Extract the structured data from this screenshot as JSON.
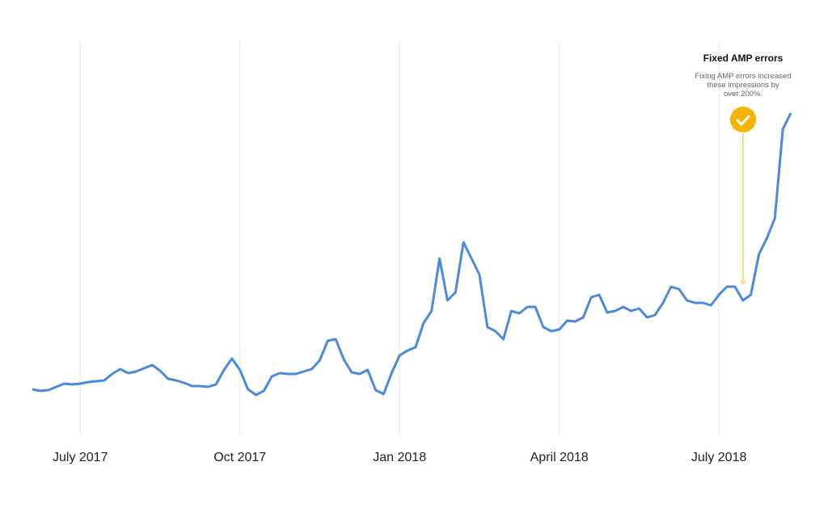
{
  "chart_data": {
    "type": "line",
    "color": "#4a89dc",
    "annotation": {
      "title": "Fixed AMP errors",
      "lines": [
        "Fixing AMP errors increased",
        "these impressions by",
        "over 200%."
      ]
    },
    "categories": [
      null,
      null,
      null,
      null,
      null,
      null,
      "July 2017",
      null,
      null,
      null,
      null,
      null,
      null,
      null,
      null,
      null,
      null,
      null,
      null,
      null,
      null,
      null,
      null,
      null,
      null,
      null,
      "Oct 2017",
      null,
      null,
      null,
      null,
      null,
      null,
      null,
      null,
      null,
      null,
      null,
      null,
      null,
      null,
      null,
      null,
      null,
      null,
      null,
      "Jan 2018",
      null,
      null,
      null,
      null,
      null,
      null,
      null,
      null,
      null,
      null,
      null,
      null,
      null,
      null,
      null,
      null,
      null,
      null,
      null,
      "April 2018",
      null,
      null,
      null,
      null,
      null,
      null,
      null,
      null,
      null,
      null,
      null,
      null,
      null,
      null,
      null,
      null,
      null,
      null,
      null,
      "July 2018",
      null,
      null,
      null,
      null,
      null,
      null,
      null,
      null,
      null
    ],
    "values": [
      18,
      16,
      17,
      21,
      25,
      24,
      25,
      27,
      28,
      29,
      37,
      43,
      38,
      40,
      44,
      48,
      41,
      31,
      29,
      26,
      22,
      22,
      21,
      24,
      42,
      56,
      42,
      18,
      11,
      16,
      34,
      38,
      37,
      37,
      40,
      43,
      54,
      78,
      80,
      55,
      39,
      37,
      42,
      17,
      12,
      38,
      60,
      66,
      70,
      100,
      115,
      180,
      128,
      138,
      200,
      180,
      160,
      95,
      90,
      80,
      115,
      112,
      120,
      120,
      95,
      90,
      92,
      103,
      102,
      107,
      132,
      135,
      113,
      115,
      120,
      115,
      118,
      107,
      110,
      125,
      145,
      142,
      128,
      125,
      125,
      122,
      135,
      145,
      145,
      128,
      135,
      185,
      205,
      230,
      340,
      360
    ],
    "ylim": [
      0,
      400
    ]
  }
}
